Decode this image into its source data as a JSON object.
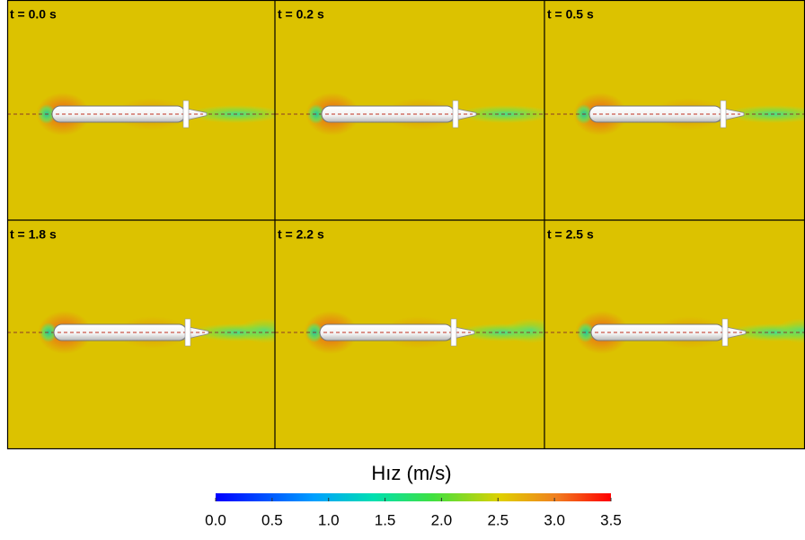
{
  "panels": [
    {
      "label": "t = 0.0 s"
    },
    {
      "label": "t = 0.2 s"
    },
    {
      "label": "t = 0.5 s"
    },
    {
      "label": "t = 1.8 s"
    },
    {
      "label": "t = 2.2 s"
    },
    {
      "label": "t = 2.5 s"
    }
  ],
  "colorbar": {
    "title": "Hız (m/s)",
    "ticks": [
      {
        "value": 0,
        "label": "0.0"
      },
      {
        "value": 0.5,
        "label": "0.5"
      },
      {
        "value": 1,
        "label": "1.0"
      },
      {
        "value": 1.5,
        "label": "1.5"
      },
      {
        "value": 2,
        "label": "2.0"
      },
      {
        "value": 2.5,
        "label": "2.5"
      },
      {
        "value": 3,
        "label": "3.0"
      },
      {
        "value": 3.5,
        "label": "3.5"
      }
    ]
  }
}
